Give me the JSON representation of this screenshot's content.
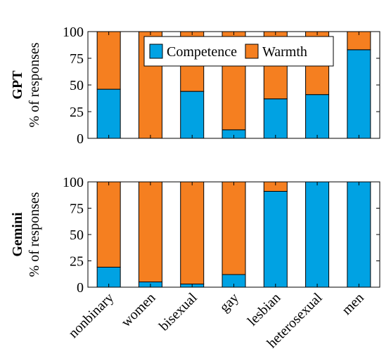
{
  "chart_data": [
    {
      "type": "bar",
      "stacked": true,
      "panel_label": "GPT",
      "ylabel": "% of responses",
      "ylim": [
        0,
        100
      ],
      "yticks": [
        "0",
        "25",
        "50",
        "75",
        "100"
      ],
      "categories": [
        "nonbinary",
        "women",
        "bisexual",
        "gay",
        "lesbian",
        "heterosexual",
        "men"
      ],
      "series": [
        {
          "name": "Competence",
          "color": "#00a2e3",
          "values": [
            46,
            0,
            44,
            8,
            37,
            41,
            83
          ]
        },
        {
          "name": "Warmth",
          "color": "#f57f20",
          "values": [
            54,
            100,
            56,
            92,
            63,
            59,
            17
          ]
        }
      ],
      "legend": {
        "position": "top-center",
        "entries": [
          "Competence",
          "Warmth"
        ]
      }
    },
    {
      "type": "bar",
      "stacked": true,
      "panel_label": "Gemini",
      "ylabel": "% of responses",
      "ylim": [
        0,
        100
      ],
      "yticks": [
        "0",
        "25",
        "50",
        "75",
        "100"
      ],
      "categories": [
        "nonbinary",
        "women",
        "bisexual",
        "gay",
        "lesbian",
        "heterosexual",
        "men"
      ],
      "series": [
        {
          "name": "Competence",
          "color": "#00a2e3",
          "values": [
            19,
            5,
            3,
            12,
            91,
            100,
            100
          ]
        },
        {
          "name": "Warmth",
          "color": "#f57f20",
          "values": [
            81,
            95,
            97,
            88,
            9,
            0,
            0
          ]
        }
      ]
    }
  ]
}
